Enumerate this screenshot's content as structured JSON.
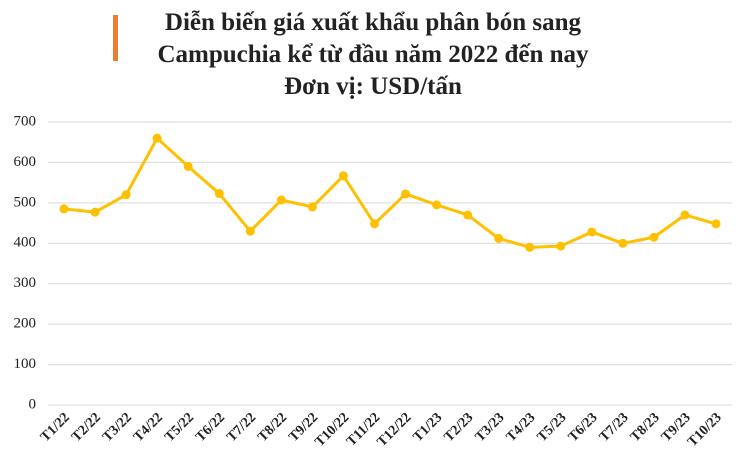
{
  "chart_data": {
    "type": "line",
    "title": [
      "Diễn biến giá xuất khẩu phân bón sang",
      "Campuchia kể từ đầu năm 2022 đến nay",
      "Đơn vị: USD/tấn"
    ],
    "categories": [
      "T1/22",
      "T2/22",
      "T3/22",
      "T4/22",
      "T5/22",
      "T6/22",
      "T7/22",
      "T8/22",
      "T9/22",
      "T10/22",
      "T11/22",
      "T12/22",
      "T1/23",
      "T2/23",
      "T3/23",
      "T4/23",
      "T5/23",
      "T6/23",
      "T7/23",
      "T8/23",
      "T9/23",
      "T10/23"
    ],
    "values": [
      485,
      477,
      520,
      660,
      590,
      523,
      430,
      507,
      490,
      567,
      448,
      522,
      495,
      470,
      412,
      390,
      393,
      428,
      400,
      415,
      470,
      448
    ],
    "color": "#ffc000",
    "ylim": [
      0,
      700
    ],
    "yticks": [
      0,
      100,
      200,
      300,
      400,
      500,
      600,
      700
    ],
    "grid": true
  }
}
